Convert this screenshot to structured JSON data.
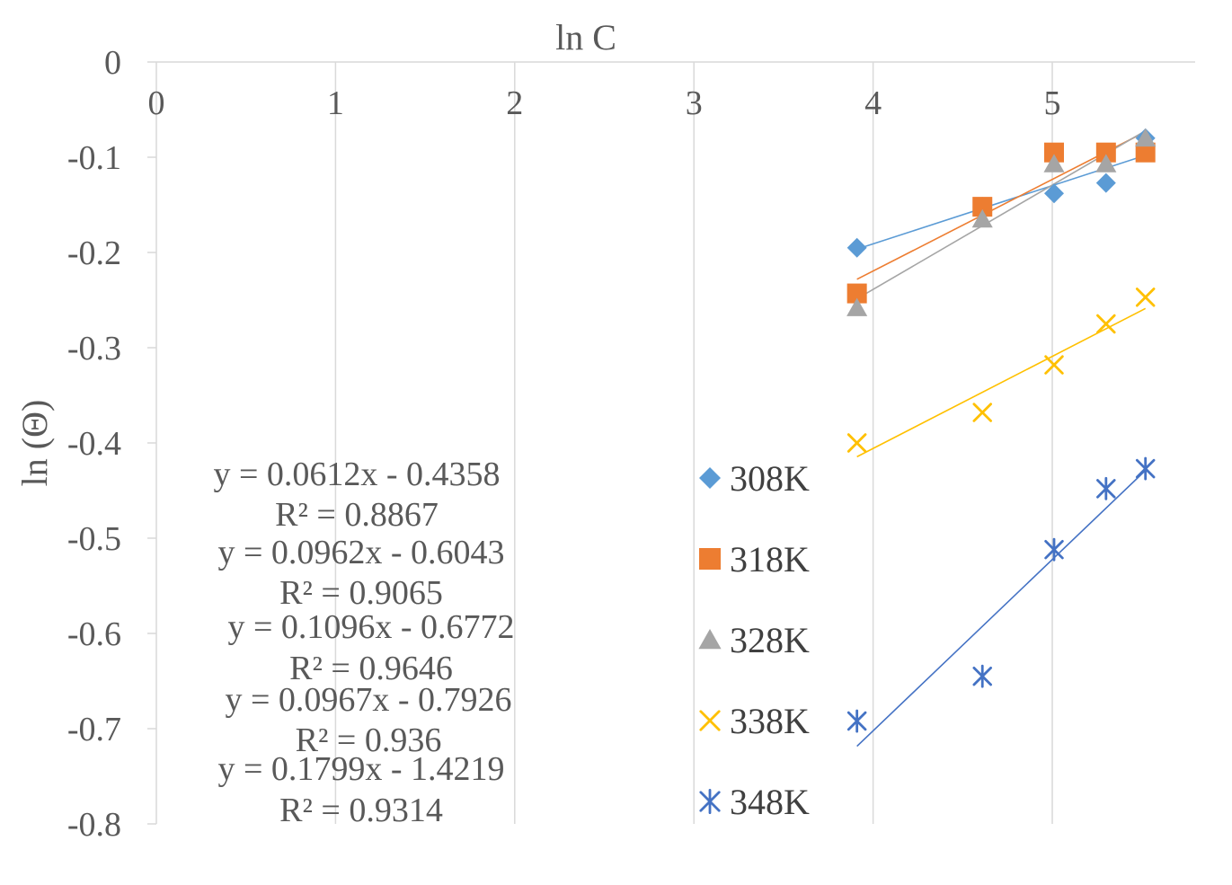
{
  "chart_data": {
    "type": "scatter",
    "xlabel": "ln C",
    "ylabel": "ln (Θ)",
    "xlim": [
      0,
      5.8
    ],
    "ylim": [
      -0.8,
      0
    ],
    "x_ticks": [
      0,
      1,
      2,
      3,
      4,
      5
    ],
    "y_ticks": [
      0,
      -0.1,
      -0.2,
      -0.3,
      -0.4,
      -0.5,
      -0.6,
      -0.7,
      -0.8
    ],
    "grid": "vertical",
    "legend_position": "right-center",
    "series": [
      {
        "name": "308K",
        "marker": "diamond",
        "color": "#5B9BD5",
        "x": [
          3.91,
          4.61,
          5.01,
          5.3,
          5.52
        ],
        "y": [
          -0.195,
          -0.152,
          -0.138,
          -0.127,
          -0.08
        ],
        "trendline": {
          "slope": 0.0612,
          "intercept": -0.4358
        },
        "equation": "y = 0.0612x  - 0.4358",
        "r2": "R² = 0.8867"
      },
      {
        "name": "318K",
        "marker": "square",
        "color": "#ED7D31",
        "x": [
          3.91,
          4.61,
          5.01,
          5.3,
          5.52
        ],
        "y": [
          -0.243,
          -0.152,
          -0.095,
          -0.095,
          -0.095
        ],
        "trendline": {
          "slope": 0.0962,
          "intercept": -0.6043
        },
        "equation": "y = 0.0962x  - 0.6043",
        "r2": "R² = 0.9065"
      },
      {
        "name": "328K",
        "marker": "triangle",
        "color": "#A5A5A5",
        "x": [
          3.91,
          4.61,
          5.01,
          5.3,
          5.52
        ],
        "y": [
          -0.258,
          -0.165,
          -0.107,
          -0.107,
          -0.08
        ],
        "trendline": {
          "slope": 0.1096,
          "intercept": -0.6772
        },
        "equation": "y = 0.1096x  - 0.6772",
        "r2": "R² = 0.9646"
      },
      {
        "name": "338K",
        "marker": "x",
        "color": "#FFC000",
        "x": [
          3.91,
          4.61,
          5.01,
          5.3,
          5.52
        ],
        "y": [
          -0.4,
          -0.368,
          -0.318,
          -0.275,
          -0.247
        ],
        "trendline": {
          "slope": 0.0967,
          "intercept": -0.7926
        },
        "equation": "y = 0.0967x  - 0.7926",
        "r2": "R² = 0.936"
      },
      {
        "name": "348K",
        "marker": "star",
        "color": "#4472C4",
        "x": [
          3.91,
          4.61,
          5.01,
          5.3,
          5.52
        ],
        "y": [
          -0.692,
          -0.645,
          -0.512,
          -0.448,
          -0.427
        ],
        "trendline": {
          "slope": 0.1799,
          "intercept": -1.4219
        },
        "equation": "y = 0.1799x  - 1.4219",
        "r2": "R² = 0.9314"
      }
    ]
  }
}
